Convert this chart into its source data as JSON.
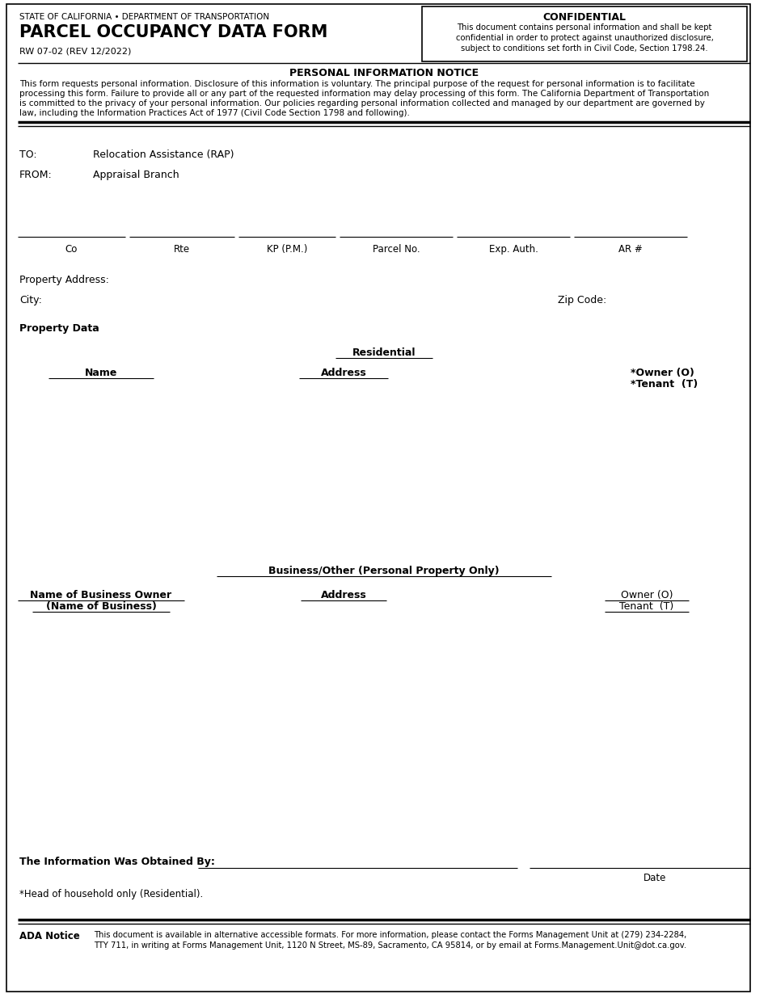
{
  "title_agency": "STATE OF CALIFORNIA • DEPARTMENT OF TRANSPORTATION",
  "title_form": "PARCEL OCCUPANCY DATA FORM",
  "title_rev": "RW 07-02 (REV 12/2022)",
  "confidential_title": "CONFIDENTIAL",
  "confidential_text": "This document contains personal information and shall be kept\nconfidential in order to protect against unauthorized disclosure,\nsubject to conditions set forth in Civil Code, Section 1798.24.",
  "notice_title": "PERSONAL INFORMATION NOTICE",
  "notice_text_lines": [
    "This form requests personal information. Disclosure of this information is voluntary. The principal purpose of the request for personal information is to facilitate",
    "processing this form. Failure to provide all or any part of the requested information may delay processing of this form. The California Department of Transportation",
    "is committed to the privacy of your personal information. Our policies regarding personal information collected and managed by our department are governed by",
    "law, including the Information Practices Act of 1977 (Civil Code Section 1798 and following)."
  ],
  "to_label": "TO:",
  "to_value": "Relocation Assistance (RAP)",
  "from_label": "FROM:",
  "from_value": "Appraisal Branch",
  "fields_row": [
    "Co",
    "Rte",
    "KP (P.M.)",
    "Parcel No.",
    "Exp. Auth.",
    "AR #"
  ],
  "field_line_starts": [
    22,
    160,
    295,
    420,
    565,
    710
  ],
  "field_line_ends": [
    155,
    290,
    415,
    560,
    705,
    850
  ],
  "property_address_label": "Property Address:",
  "city_label": "City:",
  "zip_label": "Zip Code:",
  "property_data_label": "Property Data",
  "residential_label": "Residential",
  "name_label": "Name",
  "address_label": "Address",
  "owner_tenant_label": "*Owner (O)\n*Tenant  (T)",
  "business_label": "Business/Other (Personal Property Only)",
  "biz_name_label_line1": "Name of Business Owner",
  "biz_name_label_line2": "(Name of Business)",
  "biz_address_label": "Address",
  "biz_owner_label": "Owner (O)",
  "biz_tenant_label": "Tenant  (T)",
  "obtained_by_label": "The Information Was Obtained By:",
  "date_label": "Date",
  "head_household_note": "*Head of household only (Residential).",
  "ada_notice_label": "ADA Notice",
  "ada_notice_text_line1": "This document is available in alternative accessible formats. For more information, please contact the Forms Management Unit at (279) 234-2284,",
  "ada_notice_text_line2": "TTY 711, in writing at Forms Management Unit, 1120 N Street, MS-89, Sacramento, CA 95814, or by email at Forms.Management.Unit@dot.ca.gov.",
  "bg_color": "#ffffff",
  "text_color": "#000000"
}
